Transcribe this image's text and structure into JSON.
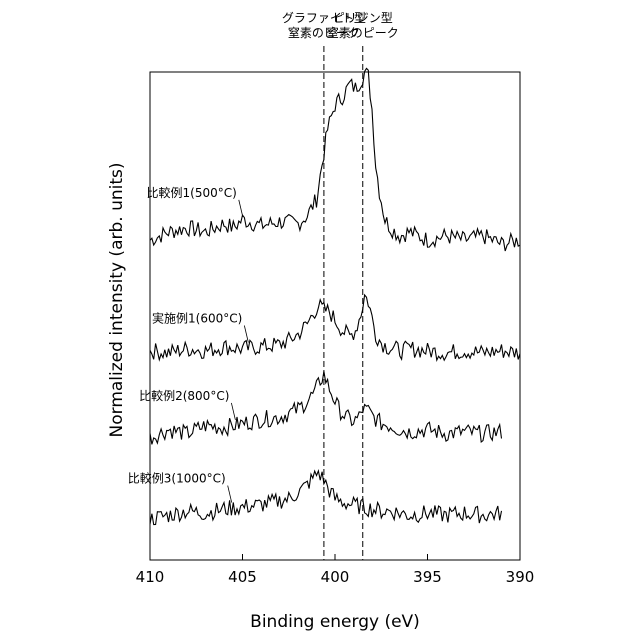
{
  "chart_data": {
    "type": "line",
    "title": "",
    "xlabel": "Binding energy (eV)",
    "ylabel": "Normalized intensity (arb. units)",
    "xlim": [
      410,
      390
    ],
    "x_reversed": true,
    "y_units": "arbitrary, curves vertically offset",
    "x_ticks": [
      "410",
      "405",
      "400",
      "395",
      "390"
    ],
    "grid": false,
    "legend": "none (curves labeled directly)",
    "reference_lines": [
      {
        "x": 400.6,
        "label_lines": [
          "グラファイト型",
          "窒素のピーク"
        ],
        "style": "dashed"
      },
      {
        "x": 398.5,
        "label_lines": [
          "ピリジン型",
          "窒素のピーク"
        ],
        "style": "dashed"
      }
    ],
    "series": [
      {
        "name": "比較例1(500°C)",
        "x": [
          410,
          409,
          408,
          407,
          406,
          405.5,
          405,
          404,
          403,
          402,
          401.5,
          401,
          400.7,
          400.4,
          400,
          399.6,
          399.2,
          398.9,
          398.6,
          398.4,
          398.2,
          398,
          397.8,
          397.6,
          397.3,
          397,
          396.5,
          396,
          395,
          394,
          393,
          392,
          391,
          390
        ],
        "y": [
          0.18,
          0.22,
          0.24,
          0.22,
          0.26,
          0.24,
          0.28,
          0.25,
          0.27,
          0.26,
          0.3,
          0.38,
          0.55,
          0.72,
          0.84,
          0.88,
          0.94,
          0.92,
          0.96,
          1.0,
          0.98,
          0.82,
          0.55,
          0.42,
          0.28,
          0.24,
          0.2,
          0.22,
          0.18,
          0.2,
          0.18,
          0.2,
          0.16,
          0.18
        ]
      },
      {
        "name": "実施例1(600°C)",
        "x": [
          410,
          409,
          408,
          407,
          406,
          405,
          404,
          403,
          402.5,
          402,
          401.5,
          401.2,
          400.9,
          400.6,
          400.3,
          400,
          399.6,
          399.2,
          398.9,
          398.6,
          398.4,
          398.2,
          398,
          397.8,
          397.5,
          397.2,
          396.8,
          396.4,
          396,
          395,
          394,
          393,
          392,
          391,
          390
        ],
        "y": [
          0.14,
          0.13,
          0.15,
          0.14,
          0.16,
          0.15,
          0.16,
          0.17,
          0.19,
          0.22,
          0.27,
          0.32,
          0.36,
          0.34,
          0.33,
          0.29,
          0.24,
          0.21,
          0.24,
          0.32,
          0.41,
          0.38,
          0.3,
          0.22,
          0.18,
          0.16,
          0.15,
          0.14,
          0.15,
          0.14,
          0.13,
          0.14,
          0.13,
          0.14,
          0.13
        ]
      },
      {
        "name": "比較例2(800°C)",
        "x": [
          410,
          409,
          408,
          407,
          406,
          405,
          404,
          403,
          402.5,
          402,
          401.5,
          401.1,
          400.8,
          400.6,
          400.4,
          400.1,
          399.8,
          399.4,
          399,
          398.7,
          398.5,
          398.2,
          397.9,
          397.5,
          397,
          396.5,
          396,
          395,
          394,
          393,
          392,
          391
        ],
        "y": [
          0.12,
          0.16,
          0.14,
          0.18,
          0.17,
          0.19,
          0.21,
          0.22,
          0.24,
          0.26,
          0.3,
          0.34,
          0.4,
          0.43,
          0.38,
          0.32,
          0.26,
          0.22,
          0.2,
          0.22,
          0.26,
          0.25,
          0.22,
          0.19,
          0.18,
          0.16,
          0.15,
          0.16,
          0.14,
          0.15,
          0.14,
          0.15
        ]
      },
      {
        "name": "比較例3(1000°C)",
        "x": [
          410,
          409,
          408,
          407,
          406,
          405,
          404,
          403,
          402.5,
          402,
          401.6,
          401.2,
          400.9,
          400.6,
          400.3,
          400,
          399.5,
          399,
          398.5,
          398,
          397.5,
          397,
          396,
          395,
          394,
          393,
          392,
          391
        ],
        "y": [
          0.08,
          0.1,
          0.12,
          0.11,
          0.13,
          0.14,
          0.15,
          0.17,
          0.18,
          0.21,
          0.24,
          0.28,
          0.31,
          0.27,
          0.22,
          0.18,
          0.16,
          0.15,
          0.14,
          0.13,
          0.12,
          0.12,
          0.1,
          0.11,
          0.1,
          0.11,
          0.1,
          0.11
        ]
      }
    ],
    "series_offsets": [
      0.58,
      0.37,
      0.2,
      0.05
    ],
    "label_anchor_x": [
      405.2,
      404.9,
      405.6,
      405.8
    ]
  }
}
